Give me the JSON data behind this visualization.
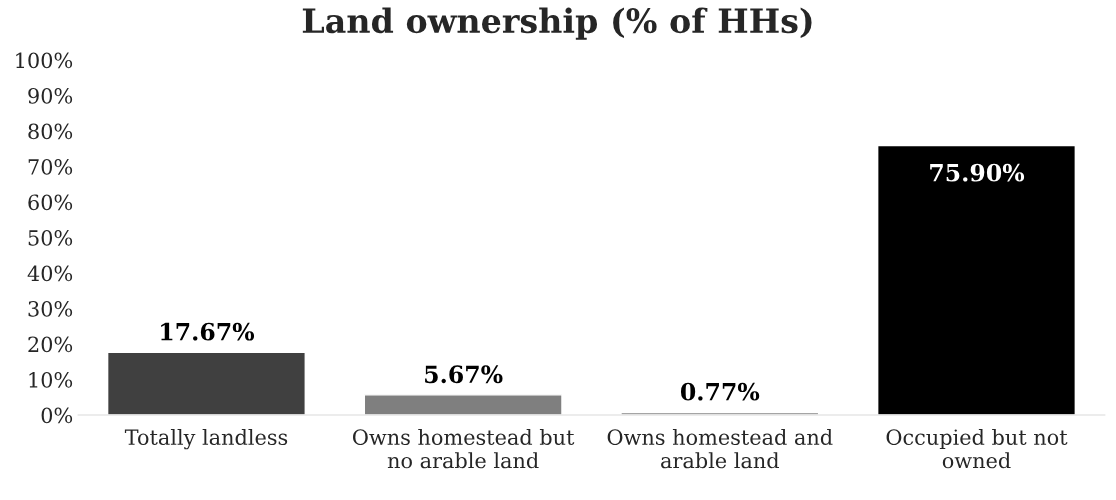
{
  "chart_data": {
    "type": "bar",
    "title": "Land ownership (% of HHs)",
    "categories": [
      "Totally landless",
      "Owns homestead but no arable land",
      "Owns homestead and arable land",
      "Occupied but not owned"
    ],
    "values": [
      17.67,
      5.67,
      0.77,
      75.9
    ],
    "colors": [
      "#404040",
      "#7f7f7f",
      "#a5a5a5",
      "#000000"
    ],
    "value_labels": [
      "17.67%",
      "5.67%",
      "0.77%",
      "75.90%"
    ],
    "ylim": [
      0,
      100
    ],
    "yticks": [
      {
        "value": 0,
        "label": "0%"
      },
      {
        "value": 10,
        "label": "10%"
      },
      {
        "value": 20,
        "label": "20%"
      },
      {
        "value": 30,
        "label": "30%"
      },
      {
        "value": 40,
        "label": "40%"
      },
      {
        "value": 50,
        "label": "50%"
      },
      {
        "value": 60,
        "label": "60%"
      },
      {
        "value": 70,
        "label": "70%"
      },
      {
        "value": 80,
        "label": "80%"
      },
      {
        "value": 90,
        "label": "90%"
      },
      {
        "value": 100,
        "label": "100%"
      }
    ],
    "grid": false,
    "legend": false
  }
}
